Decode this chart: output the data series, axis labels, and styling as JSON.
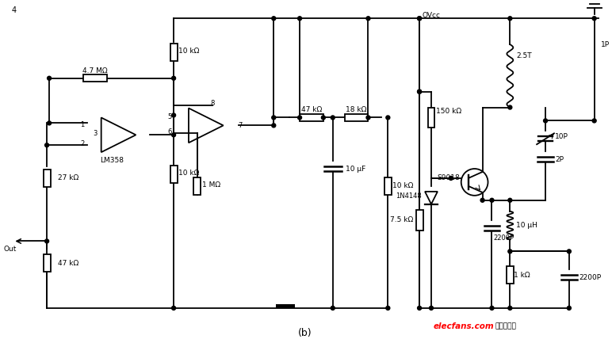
{
  "background_color": "#ffffff",
  "line_color": "#000000",
  "subtitle": "(b)",
  "watermark_text": "elecfans.com",
  "watermark_color": "#ff0000",
  "watermark_chinese": "电子发烧友",
  "page_number": "4",
  "fig_width": 7.72,
  "fig_height": 4.33,
  "dpi": 100
}
